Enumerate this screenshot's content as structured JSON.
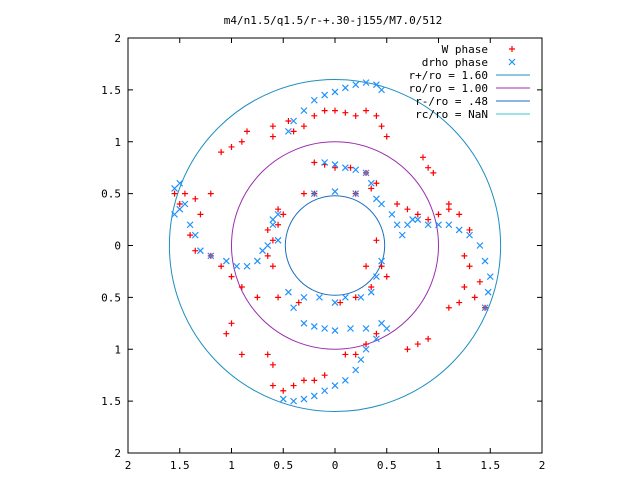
{
  "chart_data": {
    "type": "scatter",
    "title": "m4/n1.5/q1.5/r-+.30-j155/M7.0/512",
    "xlabel": "",
    "ylabel": "",
    "xlim": [
      -2,
      2
    ],
    "ylim": [
      -2,
      2
    ],
    "grid": false,
    "legend_position": "top-right",
    "x_ticks": [
      {
        "value": -2,
        "label": "2"
      },
      {
        "value": -1.5,
        "label": "1.5"
      },
      {
        "value": -1,
        "label": "1"
      },
      {
        "value": -0.5,
        "label": "0.5"
      },
      {
        "value": 0,
        "label": "0"
      },
      {
        "value": 0.5,
        "label": "0.5"
      },
      {
        "value": 1,
        "label": "1"
      },
      {
        "value": 1.5,
        "label": "1.5"
      },
      {
        "value": 2,
        "label": "2"
      }
    ],
    "y_ticks": [
      {
        "value": 2,
        "label": "2"
      },
      {
        "value": 1.5,
        "label": "1.5"
      },
      {
        "value": 1,
        "label": "1"
      },
      {
        "value": 0.5,
        "label": "0.5"
      },
      {
        "value": 0,
        "label": "0"
      },
      {
        "value": -0.5,
        "label": "0.5"
      },
      {
        "value": -1,
        "label": "1"
      },
      {
        "value": -1.5,
        "label": "1.5"
      },
      {
        "value": -2,
        "label": "2"
      }
    ],
    "series": [
      {
        "name": "W phase",
        "marker": "plus",
        "color": "#ff0000",
        "points": [
          [
            -1.1,
            0.9
          ],
          [
            -1.0,
            0.95
          ],
          [
            -0.9,
            1.0
          ],
          [
            -0.85,
            1.1
          ],
          [
            -0.6,
            1.05
          ],
          [
            -0.6,
            1.15
          ],
          [
            -0.45,
            1.2
          ],
          [
            -0.4,
            1.1
          ],
          [
            -0.3,
            1.15
          ],
          [
            -0.2,
            1.25
          ],
          [
            -0.1,
            1.3
          ],
          [
            0.0,
            1.3
          ],
          [
            0.1,
            1.28
          ],
          [
            0.2,
            1.25
          ],
          [
            0.3,
            1.3
          ],
          [
            0.4,
            1.25
          ],
          [
            0.45,
            1.15
          ],
          [
            0.5,
            1.05
          ],
          [
            -0.2,
            0.8
          ],
          [
            -0.1,
            0.78
          ],
          [
            0.0,
            0.75
          ],
          [
            0.15,
            0.75
          ],
          [
            0.3,
            0.7
          ],
          [
            0.4,
            0.6
          ],
          [
            -0.6,
            0.05
          ],
          [
            -0.65,
            0.15
          ],
          [
            -0.55,
            0.2
          ],
          [
            -0.65,
            -0.1
          ],
          [
            -0.6,
            -0.2
          ],
          [
            -0.3,
            0.5
          ],
          [
            -0.2,
            0.5
          ],
          [
            0.2,
            0.5
          ],
          [
            0.35,
            0.55
          ],
          [
            0.6,
            0.4
          ],
          [
            0.7,
            0.35
          ],
          [
            0.8,
            0.3
          ],
          [
            0.9,
            0.25
          ],
          [
            1.0,
            0.3
          ],
          [
            1.1,
            0.35
          ],
          [
            0.85,
            0.85
          ],
          [
            0.9,
            0.75
          ],
          [
            0.95,
            0.7
          ],
          [
            1.1,
            0.4
          ],
          [
            1.2,
            0.3
          ],
          [
            1.3,
            0.15
          ],
          [
            1.25,
            -0.1
          ],
          [
            1.3,
            -0.2
          ],
          [
            1.4,
            -0.35
          ],
          [
            1.35,
            -0.5
          ],
          [
            1.45,
            -0.6
          ],
          [
            1.2,
            -0.55
          ],
          [
            1.1,
            -0.6
          ],
          [
            1.25,
            -0.4
          ],
          [
            0.9,
            -0.9
          ],
          [
            0.8,
            -0.95
          ],
          [
            0.7,
            -1.0
          ],
          [
            -1.55,
            0.5
          ],
          [
            -1.5,
            0.4
          ],
          [
            -1.45,
            0.5
          ],
          [
            -1.35,
            0.45
          ],
          [
            -1.3,
            0.3
          ],
          [
            -1.2,
            0.5
          ],
          [
            -1.4,
            0.1
          ],
          [
            -1.35,
            -0.05
          ],
          [
            -1.2,
            -0.1
          ],
          [
            -1.1,
            -0.2
          ],
          [
            -1.0,
            -0.3
          ],
          [
            -0.9,
            -0.4
          ],
          [
            -0.75,
            -0.5
          ],
          [
            -1.0,
            -0.75
          ],
          [
            -1.05,
            -0.85
          ],
          [
            -0.9,
            -1.05
          ],
          [
            -0.65,
            -1.05
          ],
          [
            -0.6,
            -1.15
          ],
          [
            -0.6,
            -1.35
          ],
          [
            -0.5,
            -1.4
          ],
          [
            -0.4,
            -1.35
          ],
          [
            -0.3,
            -1.3
          ],
          [
            -0.2,
            -1.3
          ],
          [
            -0.1,
            -1.25
          ],
          [
            0.1,
            -1.05
          ],
          [
            0.2,
            -1.05
          ],
          [
            0.3,
            -0.95
          ],
          [
            0.4,
            -0.85
          ],
          [
            -0.55,
            -0.5
          ],
          [
            -0.35,
            -0.55
          ],
          [
            0.05,
            -0.55
          ],
          [
            0.2,
            -0.5
          ],
          [
            0.35,
            -0.4
          ],
          [
            -0.5,
            0.3
          ],
          [
            -0.55,
            0.35
          ],
          [
            0.4,
            0.05
          ],
          [
            0.45,
            -0.2
          ],
          [
            0.5,
            -0.3
          ],
          [
            0.3,
            -0.2
          ]
        ]
      },
      {
        "name": "drho phase",
        "marker": "cross",
        "color": "#1e90ff",
        "points": [
          [
            -1.55,
            0.55
          ],
          [
            -1.5,
            0.6
          ],
          [
            -1.45,
            0.4
          ],
          [
            -1.55,
            0.3
          ],
          [
            -1.5,
            0.35
          ],
          [
            -1.4,
            0.2
          ],
          [
            -1.35,
            0.1
          ],
          [
            -1.3,
            -0.05
          ],
          [
            -1.2,
            -0.1
          ],
          [
            -1.05,
            -0.15
          ],
          [
            -0.95,
            -0.2
          ],
          [
            -0.85,
            -0.2
          ],
          [
            -0.75,
            -0.15
          ],
          [
            -0.7,
            -0.05
          ],
          [
            -0.65,
            0.0
          ],
          [
            -0.55,
            0.05
          ],
          [
            -0.6,
            0.2
          ],
          [
            -0.6,
            0.25
          ],
          [
            -0.55,
            0.3
          ],
          [
            -0.45,
            1.1
          ],
          [
            -0.4,
            1.2
          ],
          [
            -0.3,
            1.3
          ],
          [
            -0.2,
            1.4
          ],
          [
            -0.1,
            1.45
          ],
          [
            0.0,
            1.48
          ],
          [
            0.1,
            1.52
          ],
          [
            0.2,
            1.55
          ],
          [
            0.3,
            1.57
          ],
          [
            0.4,
            1.55
          ],
          [
            0.45,
            1.5
          ],
          [
            -0.1,
            0.8
          ],
          [
            0.0,
            0.78
          ],
          [
            0.1,
            0.75
          ],
          [
            0.2,
            0.73
          ],
          [
            0.3,
            0.7
          ],
          [
            0.35,
            0.6
          ],
          [
            -0.2,
            0.5
          ],
          [
            0.0,
            0.52
          ],
          [
            0.2,
            0.5
          ],
          [
            0.4,
            0.45
          ],
          [
            0.45,
            0.4
          ],
          [
            0.55,
            0.3
          ],
          [
            0.6,
            0.2
          ],
          [
            0.65,
            0.1
          ],
          [
            0.7,
            0.2
          ],
          [
            0.75,
            0.25
          ],
          [
            0.8,
            0.25
          ],
          [
            0.9,
            0.2
          ],
          [
            1.0,
            0.2
          ],
          [
            1.1,
            0.2
          ],
          [
            1.2,
            0.15
          ],
          [
            1.3,
            0.1
          ],
          [
            1.4,
            0.0
          ],
          [
            1.45,
            -0.15
          ],
          [
            1.5,
            -0.3
          ],
          [
            1.48,
            -0.45
          ],
          [
            1.45,
            -0.6
          ],
          [
            0.45,
            -0.15
          ],
          [
            0.4,
            -0.3
          ],
          [
            0.35,
            -0.45
          ],
          [
            0.25,
            -0.5
          ],
          [
            0.1,
            -0.5
          ],
          [
            0.0,
            -0.55
          ],
          [
            -0.15,
            -0.5
          ],
          [
            -0.3,
            -0.5
          ],
          [
            -0.45,
            -0.45
          ],
          [
            -0.4,
            -0.6
          ],
          [
            -0.3,
            -0.75
          ],
          [
            -0.2,
            -0.78
          ],
          [
            -0.1,
            -0.8
          ],
          [
            0.0,
            -0.82
          ],
          [
            0.15,
            -0.8
          ],
          [
            0.3,
            -0.8
          ],
          [
            0.45,
            -0.75
          ],
          [
            0.5,
            -0.8
          ],
          [
            0.4,
            -0.9
          ],
          [
            0.3,
            -1.0
          ],
          [
            0.25,
            -1.1
          ],
          [
            0.2,
            -1.2
          ],
          [
            0.1,
            -1.3
          ],
          [
            0.0,
            -1.35
          ],
          [
            -0.1,
            -1.4
          ],
          [
            -0.2,
            -1.45
          ],
          [
            -0.3,
            -1.48
          ],
          [
            -0.4,
            -1.5
          ],
          [
            -0.5,
            -1.48
          ]
        ]
      }
    ],
    "circles": [
      {
        "name": "r+/ro = 1.60",
        "radius": 1.6,
        "color": "#1e8fbf"
      },
      {
        "name": "ro/ro = 1.00",
        "radius": 1.0,
        "color": "#9c2fae"
      },
      {
        "name": "r-/ro = .48",
        "radius": 0.48,
        "color": "#1e6fbf"
      },
      {
        "name": "rc/ro = NaN",
        "radius": null,
        "color": "#33c9c9"
      }
    ]
  }
}
